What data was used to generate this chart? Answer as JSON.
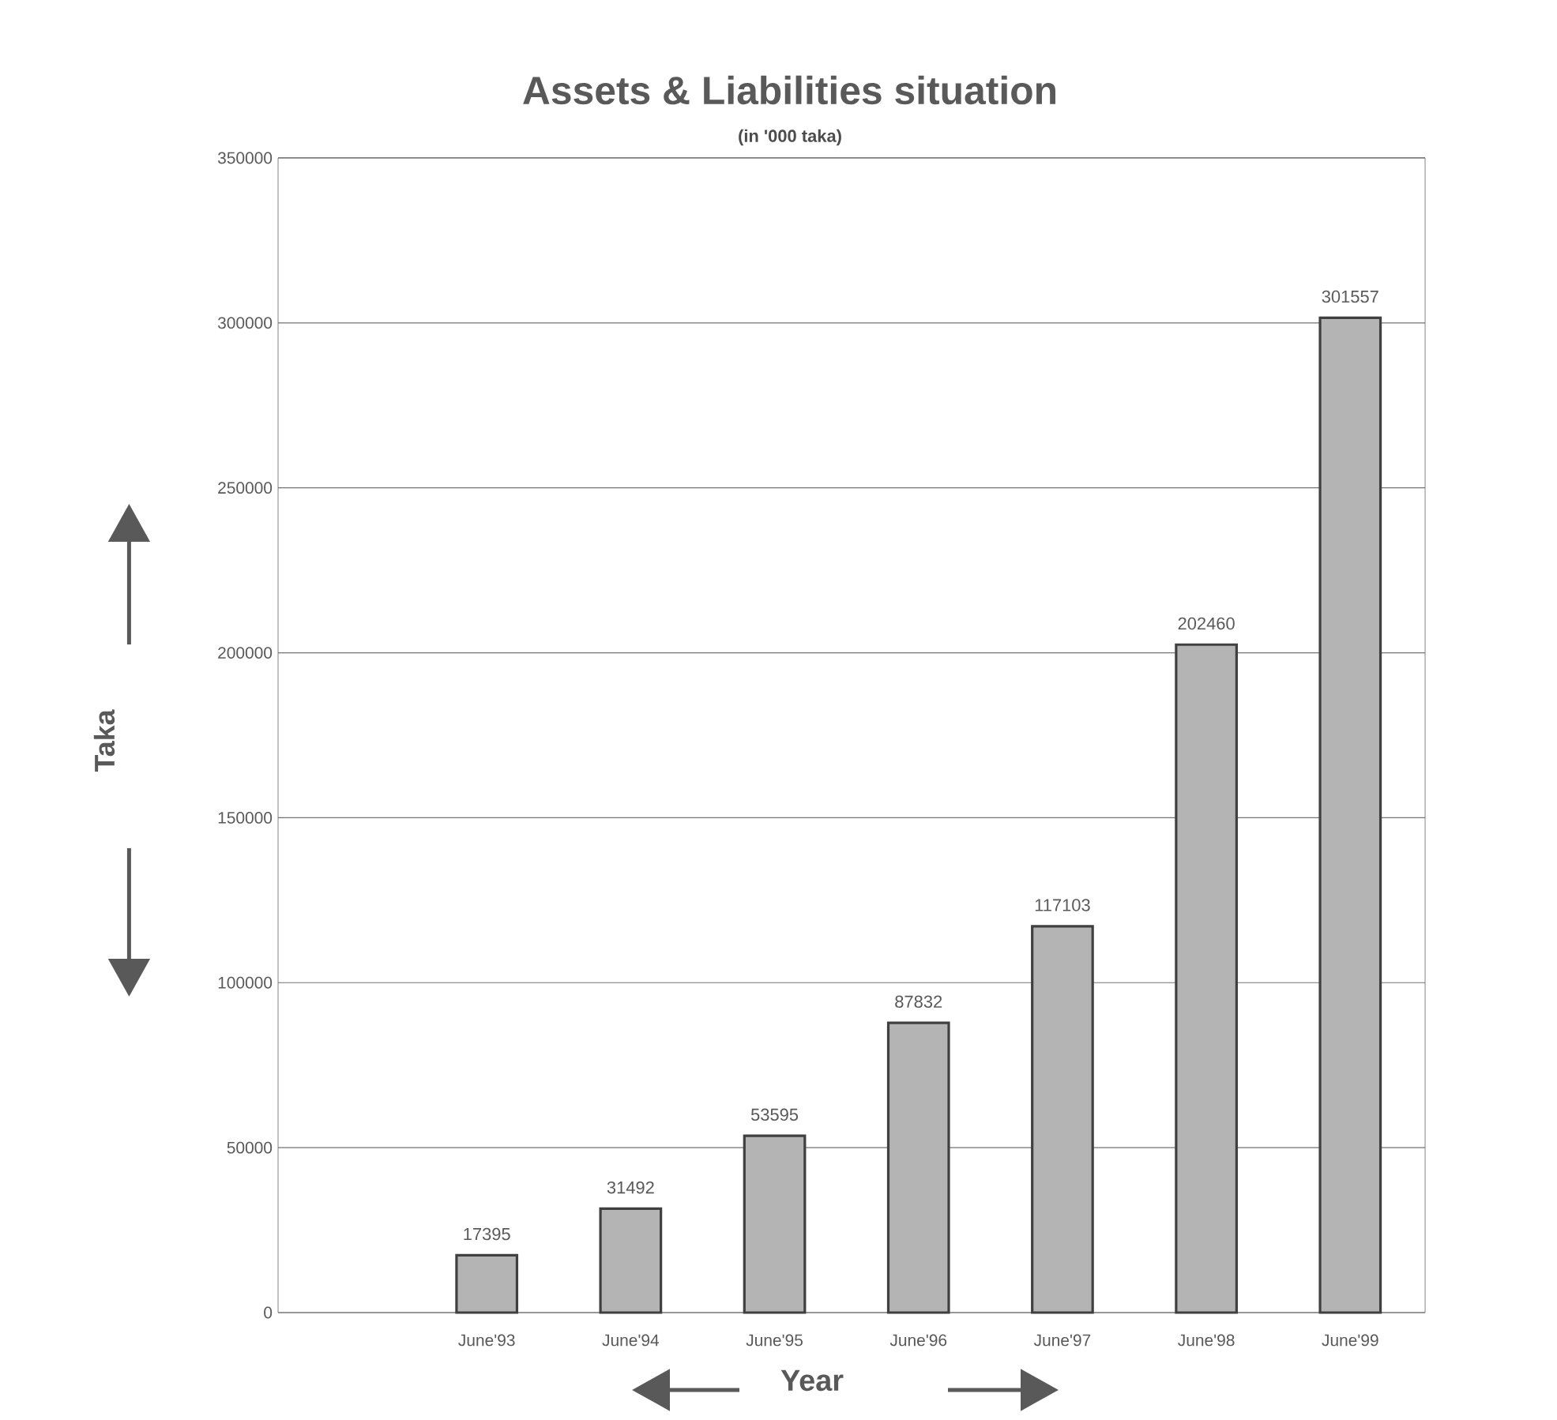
{
  "chart_data": {
    "type": "bar",
    "title": "Assets & Liabilities situation",
    "subtitle": "(in '000 taka)",
    "xlabel": "Year",
    "ylabel": "Taka",
    "categories": [
      "June'93",
      "June'94",
      "June'95",
      "June'96",
      "June'97",
      "June'98",
      "June'99"
    ],
    "values": [
      17395,
      31492,
      53595,
      87832,
      117103,
      202460,
      301557
    ],
    "color": "#b4b4b4",
    "ylim": [
      0,
      350000
    ],
    "yticks": [
      0,
      50000,
      100000,
      150000,
      200000,
      250000,
      300000,
      350000
    ],
    "grid": "y",
    "data_labels": true
  }
}
